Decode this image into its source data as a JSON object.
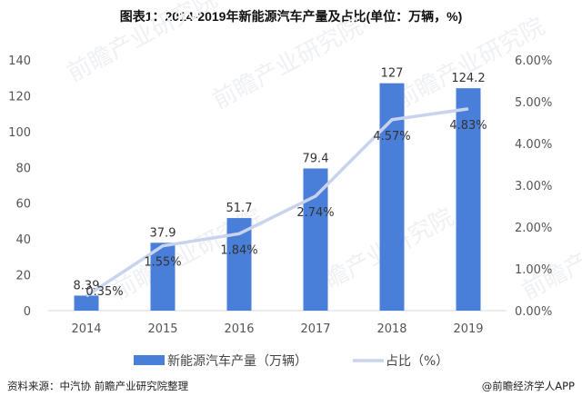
{
  "title": "图表1：2014-2019年新能源汽车产量及占比(单位：万辆，%)",
  "source": "资料来源：中汽协 前瞻产业研究院整理",
  "credit": "@前瞻经济学人APP",
  "watermark": "前瞻产业研究院",
  "chart_data": {
    "type": "bar+line",
    "categories": [
      "2014",
      "2015",
      "2016",
      "2017",
      "2018",
      "2019"
    ],
    "series": [
      {
        "name": "新能源汽车产量（万辆）",
        "type": "bar",
        "axis": "left",
        "values": [
          8.39,
          37.9,
          51.7,
          79.4,
          127,
          124.2
        ],
        "labels": [
          "8.39",
          "37.9",
          "51.7",
          "79.4",
          "127",
          "124.2"
        ],
        "color": "#4a7fd9"
      },
      {
        "name": "占比（%）",
        "type": "line",
        "axis": "right",
        "values": [
          0.35,
          1.55,
          1.84,
          2.74,
          4.57,
          4.83
        ],
        "labels": [
          "0.35%",
          "1.55%",
          "1.84%",
          "2.74%",
          "4.57%",
          "4.83%"
        ],
        "color": "#c9d3ee"
      }
    ],
    "y_left": {
      "range": [
        0,
        140
      ],
      "ticks": [
        "0",
        "20",
        "40",
        "60",
        "80",
        "100",
        "120",
        "140"
      ]
    },
    "y_right": {
      "range": [
        0,
        6
      ],
      "ticks": [
        "0.00%",
        "1.00%",
        "2.00%",
        "3.00%",
        "4.00%",
        "5.00%",
        "6.00%"
      ]
    },
    "grid": false,
    "legend_placement": "bottom"
  }
}
